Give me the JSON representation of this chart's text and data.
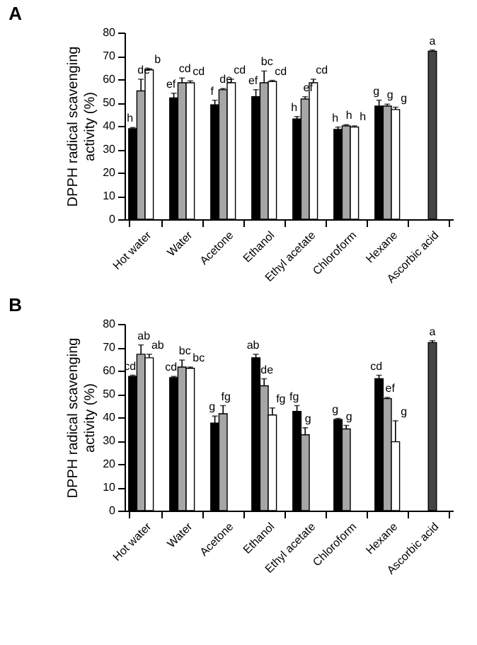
{
  "chart_data": [
    {
      "type": "bar",
      "title": "A",
      "ylabel": "DPPH radical scavenging activity (%)",
      "ylim": [
        0,
        80
      ],
      "yticks": [
        0,
        10,
        20,
        30,
        40,
        50,
        60,
        70,
        80
      ],
      "grid": false,
      "categories": [
        "Hot water",
        "Water",
        "Acetone",
        "Ethanol",
        "Ethyl acetate",
        "Chloroform",
        "Hexane",
        "Ascorbic acid"
      ],
      "series": [
        {
          "color": "#000000",
          "values": [
            38.8,
            52,
            49,
            52.5,
            43,
            38.5,
            48.5,
            null
          ],
          "errors": [
            0.5,
            2,
            2,
            3,
            1,
            1,
            2.5,
            null
          ],
          "value_labels": [
            "h",
            "ef",
            "f",
            "ef",
            "h",
            "h",
            "g",
            null
          ]
        },
        {
          "color": "#a6a6a6",
          "values": [
            55,
            58.5,
            55.5,
            58.5,
            51.5,
            40,
            48.5,
            null
          ],
          "errors": [
            5,
            2,
            0.5,
            5,
            1,
            0.5,
            0.8,
            null
          ],
          "value_labels": [
            "de",
            "cd",
            "de",
            "bc",
            "ef",
            "h",
            "g",
            null
          ]
        },
        {
          "color": "#ffffff",
          "values": [
            64,
            58.5,
            58.5,
            59,
            58.5,
            39.5,
            47,
            null
          ],
          "errors": [
            0.5,
            0.8,
            1.5,
            0.5,
            1.5,
            0.5,
            1,
            null
          ],
          "value_labels": [
            "b",
            "cd",
            "cd",
            "cd",
            "cd",
            "h",
            "g",
            null
          ]
        },
        {
          "color": "#444444",
          "values": [
            null,
            null,
            null,
            null,
            null,
            null,
            null,
            72
          ],
          "errors": [
            null,
            null,
            null,
            null,
            null,
            null,
            null,
            0.5
          ],
          "value_labels": [
            null,
            null,
            null,
            null,
            null,
            null,
            null,
            "a"
          ]
        }
      ]
    },
    {
      "type": "bar",
      "title": "B",
      "ylabel": "DPPH radical scavenging activity (%)",
      "ylim": [
        0,
        80
      ],
      "yticks": [
        0,
        10,
        20,
        30,
        40,
        50,
        60,
        70,
        80
      ],
      "grid": false,
      "categories": [
        "Hot water",
        "Water",
        "Acetone",
        "Ethanol",
        "Ethyl acetate",
        "Chloroform",
        "Hexane",
        "Ascorbic acid"
      ],
      "series": [
        {
          "color": "#000000",
          "values": [
            57.5,
            57,
            37.5,
            65.5,
            42.5,
            39,
            56.5,
            null
          ],
          "errors": [
            0.5,
            0.5,
            3,
            1.5,
            2.5,
            0.5,
            1.5,
            null
          ],
          "value_labels": [
            "cd",
            "cd",
            "g",
            "ab",
            "fg",
            "g",
            "cd",
            null
          ]
        },
        {
          "color": "#a6a6a6",
          "values": [
            67,
            61.5,
            41.5,
            53.5,
            32.5,
            35,
            48,
            null
          ],
          "errors": [
            4,
            3,
            3.5,
            3,
            3,
            1.5,
            0.5,
            null
          ],
          "value_labels": [
            "ab",
            "bc",
            "fg",
            "de",
            "g",
            "g",
            "ef",
            null
          ]
        },
        {
          "color": "#ffffff",
          "values": [
            65.5,
            61,
            null,
            41,
            null,
            null,
            29.5,
            null
          ],
          "errors": [
            1.5,
            0.5,
            null,
            3,
            null,
            null,
            9,
            null
          ],
          "value_labels": [
            "ab",
            "bc",
            null,
            "fg",
            null,
            null,
            "g",
            null
          ]
        },
        {
          "color": "#444444",
          "values": [
            null,
            null,
            null,
            null,
            null,
            null,
            null,
            72
          ],
          "errors": [
            null,
            null,
            null,
            null,
            null,
            null,
            null,
            0.8
          ],
          "value_labels": [
            null,
            null,
            null,
            null,
            null,
            null,
            null,
            "a"
          ]
        }
      ]
    }
  ]
}
